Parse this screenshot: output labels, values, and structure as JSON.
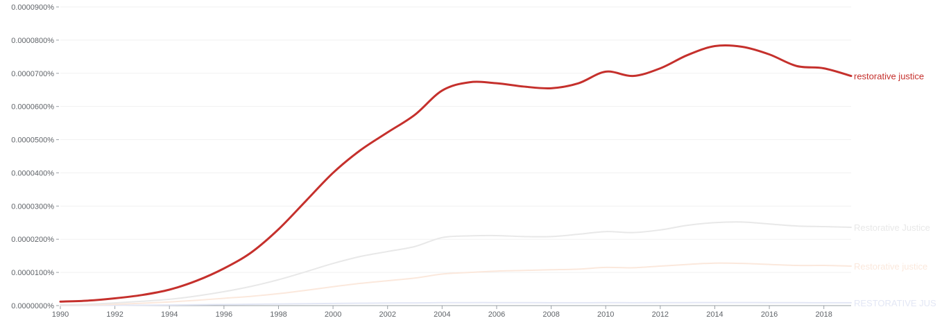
{
  "chart_data": {
    "type": "line",
    "title": "",
    "xlabel": "",
    "ylabel": "",
    "xlim": [
      1990,
      2019
    ],
    "ylim": [
      0,
      9e-07
    ],
    "grid": true,
    "legend": "right-end labels",
    "y_ticks": [
      "0.0000000%",
      "0.0000100%",
      "0.0000200%",
      "0.0000300%",
      "0.0000400%",
      "0.0000500%",
      "0.0000600%",
      "0.0000700%",
      "0.0000800%",
      "0.0000900%"
    ],
    "x_ticks": [
      "1990",
      "1992",
      "1994",
      "1996",
      "1998",
      "2000",
      "2002",
      "2004",
      "2006",
      "2008",
      "2010",
      "2012",
      "2014",
      "2016",
      "2018"
    ],
    "x": [
      1990,
      1991,
      1992,
      1993,
      1994,
      1995,
      1996,
      1997,
      1998,
      1999,
      2000,
      2001,
      2002,
      2003,
      2004,
      2005,
      2006,
      2007,
      2008,
      2009,
      2010,
      2011,
      2012,
      2013,
      2014,
      2015,
      2016,
      2017,
      2018,
      2019
    ],
    "series": [
      {
        "name": "restorative justice",
        "color": "#c5302c",
        "values": [
          1.2e-08,
          1.5e-08,
          2.2e-08,
          3.2e-08,
          4.8e-08,
          7.5e-08,
          1.12e-07,
          1.6e-07,
          2.3e-07,
          3.15e-07,
          4e-07,
          4.68e-07,
          5.22e-07,
          5.75e-07,
          6.48e-07,
          6.73e-07,
          6.7e-07,
          6.6e-07,
          6.55e-07,
          6.7e-07,
          7.05e-07,
          6.92e-07,
          7.15e-07,
          7.55e-07,
          7.82e-07,
          7.8e-07,
          7.57e-07,
          7.22e-07,
          7.15e-07,
          6.92e-07
        ]
      },
      {
        "name": "Restorative Justice",
        "color": "#e8e8e8",
        "values": [
          2e-09,
          4e-09,
          8e-09,
          1.3e-08,
          1.9e-08,
          2.9e-08,
          4.2e-08,
          5.8e-08,
          7.8e-08,
          1.02e-07,
          1.27e-07,
          1.48e-07,
          1.63e-07,
          1.78e-07,
          2.05e-07,
          2.1e-07,
          2.11e-07,
          2.08e-07,
          2.08e-07,
          2.15e-07,
          2.23e-07,
          2.2e-07,
          2.28e-07,
          2.42e-07,
          2.5e-07,
          2.52e-07,
          2.46e-07,
          2.4e-07,
          2.38e-07,
          2.36e-07
        ]
      },
      {
        "name": "Restorative justice",
        "color": "#fbe8dc",
        "values": [
          1e-09,
          2e-09,
          4e-09,
          7e-09,
          1.1e-08,
          1.6e-08,
          2.2e-08,
          2.8e-08,
          3.6e-08,
          4.6e-08,
          5.7e-08,
          6.7e-08,
          7.5e-08,
          8.3e-08,
          9.5e-08,
          1e-07,
          1.04e-07,
          1.06e-07,
          1.08e-07,
          1.1e-07,
          1.15e-07,
          1.14e-07,
          1.19e-07,
          1.24e-07,
          1.28e-07,
          1.27e-07,
          1.24e-07,
          1.21e-07,
          1.21e-07,
          1.19e-07
        ]
      },
      {
        "name": "RESTORATIVE JUS",
        "color": "#e3e7f5",
        "values": [
          2e-10,
          4e-10,
          8e-10,
          1.2e-09,
          1.8e-09,
          2.5e-09,
          3.3e-09,
          4.2e-09,
          5e-09,
          5.8e-09,
          6.5e-09,
          7.2e-09,
          7.8e-09,
          8.2e-09,
          8.8e-09,
          9e-09,
          9e-09,
          8.8e-09,
          8.6e-09,
          8.6e-09,
          8.8e-09,
          8.7e-09,
          8.8e-09,
          9e-09,
          9.2e-09,
          9.2e-09,
          9e-09,
          8.8e-09,
          8.6e-09,
          8.5e-09
        ]
      }
    ]
  }
}
